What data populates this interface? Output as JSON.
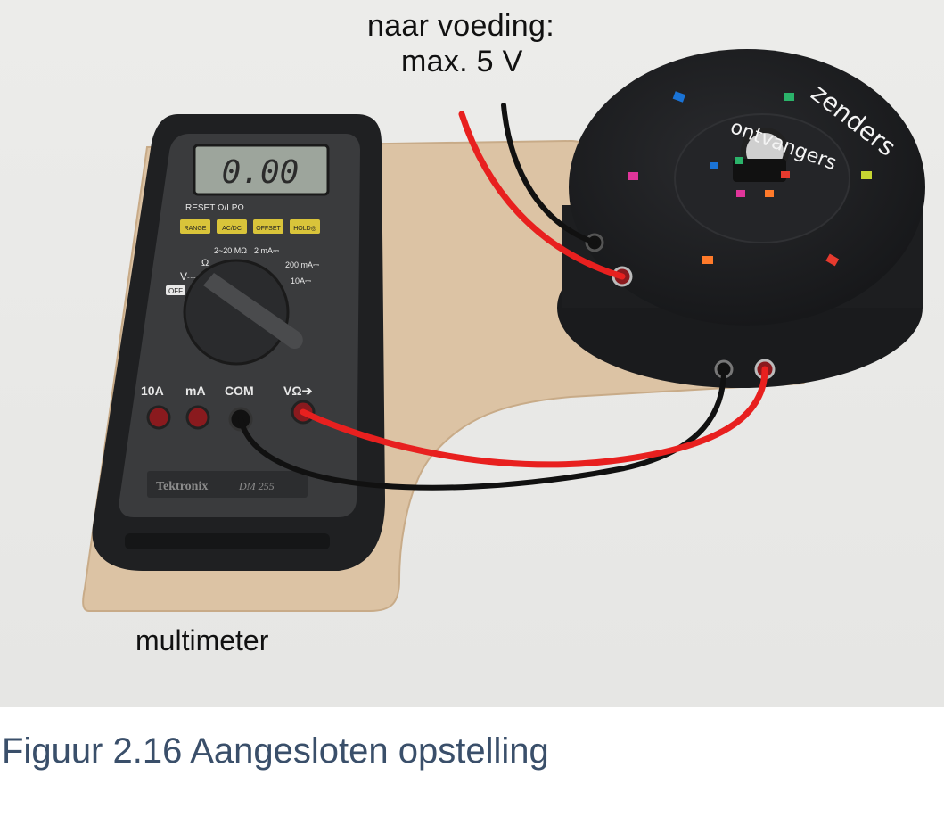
{
  "labels": {
    "power_line1": "naar voeding:",
    "power_line2": "max. 5 V",
    "multimeter": "multimeter",
    "zenders": "zenders",
    "ontvangers": "ontvangers"
  },
  "multimeter": {
    "display": "0.00",
    "brand": "Tektronix",
    "model": "DM 255",
    "header_text": "RESET Ω/LPΩ",
    "buttons": [
      "RANGE",
      "AC/DC",
      "OFFSET",
      "HOLD◎"
    ],
    "jacks": [
      "10A",
      "mA",
      "COM",
      "VΩ➔"
    ],
    "dial_left": "V⎓",
    "dial_off": "OFF",
    "dial_ohm": "Ω",
    "dial_mohm": "2~20 MΩ",
    "dial_ma2": "2 mA⎓",
    "dial_ma200": "200 mA⎓",
    "dial_10a": "10A⎓"
  },
  "caption": "Figuur 2.16 Aangesloten opstelling",
  "colors": {
    "wire_red": "#e8201f",
    "wire_black": "#111111",
    "caption": "#3a4f6a"
  }
}
